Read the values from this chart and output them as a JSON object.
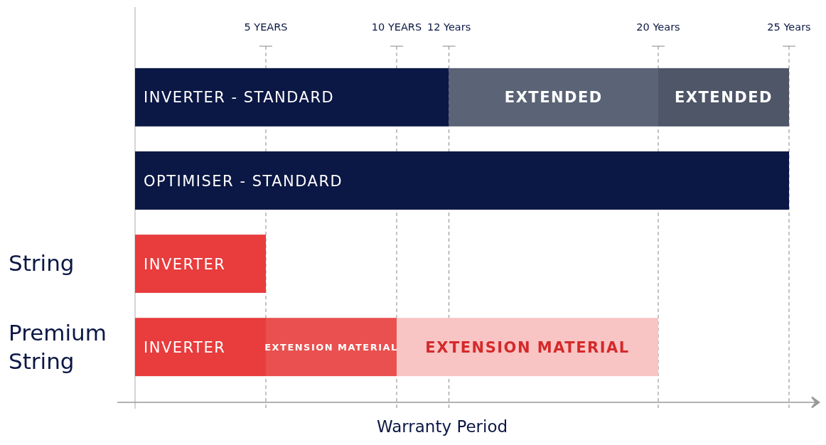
{
  "chart_data": {
    "type": "bar",
    "orientation": "horizontal",
    "stacked": true,
    "categories": [
      null,
      null,
      "String",
      "Premium String"
    ],
    "series": [
      {
        "colors": [
          "#0b1744",
          "#0b1744",
          "#e83c3d",
          "#e83c3d"
        ],
        "values": [
          12,
          25,
          5,
          5
        ],
        "value_labels": [
          "INVERTER - STANDARD",
          "OPTIMISER - STANDARD",
          "INVERTER",
          "INVERTER"
        ]
      },
      {
        "colors": [
          "#5b6376",
          null,
          null,
          "#e9504f"
        ],
        "values": [
          8,
          null,
          null,
          5
        ],
        "value_labels": [
          "EXTENDED",
          null,
          null,
          "EXTENSION MATERIAL"
        ]
      },
      {
        "colors": [
          "#4e5668",
          null,
          null,
          "#f9c4c4"
        ],
        "values": [
          5,
          null,
          null,
          10
        ],
        "value_labels": [
          "EXTENDED",
          null,
          null,
          "EXTENSION MATERIAL"
        ]
      }
    ],
    "xlim": [
      0,
      25
    ],
    "xticks": [
      {
        "value": 5,
        "label": "5 YEARS"
      },
      {
        "value": 10,
        "label": "10 YEARS"
      },
      {
        "value": 12,
        "label": "12 Years"
      },
      {
        "value": 20,
        "label": "20 Years"
      },
      {
        "value": 25,
        "label": "25 Years"
      }
    ],
    "grid": "x",
    "xlabel": "Warranty Period"
  }
}
